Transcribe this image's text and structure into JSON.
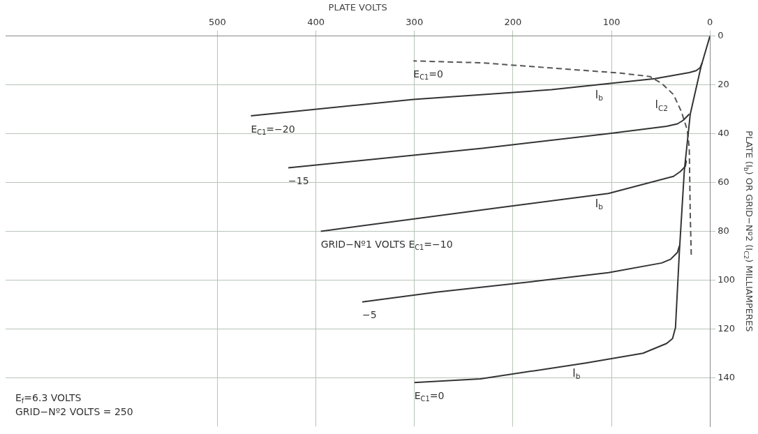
{
  "chart_data": {
    "type": "line",
    "xlabel": "PLATE VOLTS",
    "ylabel": "PLATE (I$_{b}$) OR GRID−Nº2 (I$_{C2}$) MILLIAMPERES",
    "xlim": [
      715,
      0
    ],
    "ylim": [
      160,
      0
    ],
    "xticks": [
      0,
      100,
      200,
      300,
      400,
      500
    ],
    "yticks": [
      0,
      20,
      40,
      60,
      80,
      100,
      120,
      140
    ],
    "grid": true,
    "marker": "none",
    "series": [
      {
        "name": "E$_{C1}$=0",
        "color": "#333333",
        "line_style": "solid",
        "x": [
          0,
          9,
          20,
          26,
          31,
          35,
          38,
          44,
          68,
          126,
          233,
          300
        ],
        "values": [
          0,
          12.4,
          32,
          55,
          88,
          119.5,
          124,
          126,
          130,
          134,
          140.5,
          142
        ]
      },
      {
        "name": "−5",
        "color": "#333333",
        "line_style": "solid",
        "x": [
          31,
          33,
          40,
          49,
          103,
          177,
          278,
          353
        ],
        "values": [
          86,
          88.7,
          91.5,
          93,
          97,
          100.5,
          105,
          109
        ]
      },
      {
        "name": "GRID−Nº1 VOLTS E$_{C1}$=−10",
        "color": "#333333",
        "line_style": "solid",
        "x": [
          24,
          25,
          30,
          37,
          103,
          208,
          395
        ],
        "values": [
          51,
          53.4,
          55.5,
          57.5,
          64.5,
          70,
          80
        ]
      },
      {
        "name": "−15",
        "color": "#333333",
        "line_style": "solid",
        "x": [
          21,
          27,
          33,
          44,
          103,
          231,
          428
        ],
        "values": [
          32,
          34.5,
          36,
          37,
          40,
          46,
          54
        ]
      },
      {
        "name": "E$_{C1}$=−20",
        "color": "#333333",
        "line_style": "solid",
        "x": [
          8,
          10,
          14,
          21,
          56,
          161,
          301,
          466
        ],
        "values": [
          11,
          13,
          14.2,
          15,
          17.5,
          22,
          26,
          32.7
        ]
      },
      {
        "name": "E$_{C1}$=0",
        "color": "#555555",
        "line_style": "dashed",
        "x": [
          19,
          20,
          21,
          23,
          29,
          37,
          49,
          61,
          91,
          138,
          231,
          301
        ],
        "values": [
          89.6,
          73.5,
          46,
          38.6,
          31,
          24,
          19.4,
          16.6,
          15.2,
          13.8,
          11,
          10.2
        ]
      }
    ],
    "annotations": [
      {
        "text": "I$_{b}$",
        "x": 103,
        "y": 19.9
      },
      {
        "text": "I$_{b}$",
        "x": 103,
        "y": 64.5
      },
      {
        "text": "I$_{b}$",
        "x": 126,
        "y": 134
      },
      {
        "text": "I$_{C2}$",
        "x": 37,
        "y": 24
      },
      "E$_{f}$=6.3 VOLTS",
      "GRID−Nº2 VOLTS = 250"
    ]
  }
}
